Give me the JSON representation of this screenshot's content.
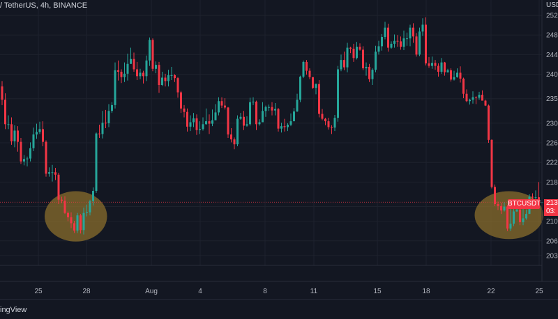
{
  "header": {
    "title": "/ TetherUS, 4h, BINANCE"
  },
  "brand": "ingView",
  "currency_label": "USD",
  "symbol_tag": "BTCUSDT",
  "last_price": {
    "price": "213",
    "countdown": "03:"
  },
  "colors": {
    "up": "#26a69a",
    "down": "#f23645",
    "grid": "#1e222d",
    "text": "#b2b5be",
    "highlight": "#8a6d2c",
    "bg": "#131722"
  },
  "chart_data": {
    "type": "candlestick",
    "title": "",
    "xlabel": "",
    "ylabel": "",
    "ylim": [
      201,
      254
    ],
    "grid": true,
    "y_ticks": [
      "252",
      "248",
      "244",
      "240",
      "235",
      "230",
      "226",
      "222",
      "218",
      "213",
      "210",
      "206",
      "203"
    ],
    "x_ticks": [
      "25",
      "28",
      "Aug",
      "4",
      "8",
      "11",
      "15",
      "18",
      "22",
      "25"
    ],
    "last_price": 213.9,
    "highlighted_zones": [
      {
        "from_candle": 18,
        "to_candle": 29,
        "low": 207.0,
        "high": 215.0
      },
      {
        "from_candle": 155,
        "to_candle": 168,
        "low": 207.5,
        "high": 215.0
      }
    ],
    "candles": [
      [
        237.5,
        234.8,
        238.6,
        233.7
      ],
      [
        234.8,
        229.8,
        236.1,
        228.8
      ],
      [
        229.8,
        229.8,
        231.6,
        228.8
      ],
      [
        229.8,
        226.3,
        231.2,
        225.6
      ],
      [
        226.3,
        228.5,
        229.6,
        225.1
      ],
      [
        228.5,
        226.2,
        229.4,
        224.2
      ],
      [
        226.2,
        222.2,
        227.0,
        221.7
      ],
      [
        222.2,
        222.7,
        223.5,
        221.4
      ],
      [
        222.7,
        222.8,
        223.2,
        221.2
      ],
      [
        222.8,
        224.9,
        226.1,
        222.2
      ],
      [
        224.9,
        227.7,
        229.1,
        224.3
      ],
      [
        227.7,
        228.2,
        229.9,
        226.8
      ],
      [
        228.2,
        228.8,
        230.3,
        227.8
      ],
      [
        228.8,
        226.2,
        230.4,
        225.3
      ],
      [
        226.2,
        219.7,
        226.5,
        219.1
      ],
      [
        219.7,
        220.0,
        221.0,
        219.1
      ],
      [
        220.0,
        220.0,
        221.5,
        218.1
      ],
      [
        220.0,
        219.5,
        220.9,
        218.4
      ],
      [
        219.5,
        214.4,
        219.9,
        213.5
      ],
      [
        214.4,
        214.2,
        215.0,
        213.7
      ],
      [
        214.2,
        211.7,
        215.1,
        211.5
      ],
      [
        211.7,
        210.8,
        212.0,
        210.0
      ],
      [
        210.8,
        209.6,
        211.8,
        208.6
      ],
      [
        209.6,
        208.1,
        210.1,
        207.6
      ],
      [
        208.1,
        211.2,
        211.7,
        207.6
      ],
      [
        211.2,
        208.2,
        211.5,
        207.5
      ],
      [
        208.2,
        211.7,
        212.8,
        207.3
      ],
      [
        211.7,
        211.8,
        213.4,
        211.0
      ],
      [
        211.8,
        214.1,
        214.4,
        211.2
      ],
      [
        214.1,
        216.2,
        216.9,
        213.2
      ],
      [
        216.2,
        227.9,
        228.1,
        215.8
      ],
      [
        227.9,
        227.8,
        229.7,
        227.0
      ],
      [
        227.8,
        230.1,
        232.5,
        226.9
      ],
      [
        230.1,
        230.0,
        232.7,
        229.0
      ],
      [
        230.0,
        232.5,
        233.9,
        229.2
      ],
      [
        232.5,
        233.7,
        234.3,
        232.1
      ],
      [
        233.7,
        240.8,
        242.4,
        233.0
      ],
      [
        240.8,
        240.5,
        242.8,
        238.7
      ],
      [
        240.5,
        239.4,
        241.0,
        238.2
      ],
      [
        239.4,
        240.1,
        242.4,
        238.4
      ],
      [
        240.1,
        242.1,
        244.2,
        238.7
      ],
      [
        242.1,
        243.1,
        245.4,
        242.1
      ],
      [
        243.1,
        241.0,
        244.4,
        240.5
      ],
      [
        241.0,
        239.6,
        242.5,
        238.8
      ],
      [
        239.6,
        240.3,
        241.1,
        239.0
      ],
      [
        240.3,
        239.6,
        240.7,
        238.1
      ],
      [
        239.6,
        242.8,
        243.8,
        238.6
      ],
      [
        242.8,
        247.0,
        247.5,
        241.7
      ],
      [
        247.0,
        241.1,
        247.3,
        240.6
      ],
      [
        241.1,
        241.9,
        242.6,
        240.2
      ],
      [
        241.9,
        237.8,
        242.5,
        236.2
      ],
      [
        237.8,
        239.3,
        240.5,
        237.6
      ],
      [
        239.3,
        238.6,
        240.1,
        237.5
      ],
      [
        238.6,
        239.8,
        240.9,
        237.5
      ],
      [
        239.8,
        239.8,
        241.5,
        238.8
      ],
      [
        239.8,
        239.2,
        240.0,
        238.4
      ],
      [
        239.2,
        236.3,
        239.4,
        235.2
      ],
      [
        236.3,
        233.0,
        236.6,
        232.1
      ],
      [
        233.0,
        232.3,
        233.7,
        231.2
      ],
      [
        232.3,
        229.3,
        233.0,
        228.3
      ],
      [
        229.3,
        230.2,
        231.6,
        228.4
      ],
      [
        230.2,
        231.0,
        232.1,
        229.2
      ],
      [
        231.0,
        228.6,
        231.8,
        227.6
      ],
      [
        228.6,
        228.8,
        230.4,
        227.8
      ],
      [
        228.8,
        229.8,
        231.2,
        228.5
      ],
      [
        229.8,
        230.4,
        233.0,
        229.7
      ],
      [
        230.4,
        229.9,
        231.8,
        227.8
      ],
      [
        229.9,
        230.6,
        232.8,
        229.4
      ],
      [
        230.6,
        232.2,
        233.9,
        231.2
      ],
      [
        232.2,
        234.5,
        235.3,
        231.6
      ],
      [
        234.5,
        233.6,
        235.3,
        233.1
      ],
      [
        233.6,
        233.2,
        235.1,
        232.8
      ],
      [
        233.2,
        227.7,
        233.3,
        227.0
      ],
      [
        227.7,
        226.7,
        229.0,
        226.1
      ],
      [
        226.7,
        225.7,
        227.1,
        224.7
      ],
      [
        225.7,
        230.9,
        231.6,
        225.3
      ],
      [
        230.9,
        231.3,
        232.1,
        230.7
      ],
      [
        231.3,
        229.5,
        232.5,
        228.6
      ],
      [
        229.5,
        229.8,
        231.4,
        229.3
      ],
      [
        229.8,
        234.3,
        235.2,
        229.5
      ],
      [
        234.3,
        234.4,
        235.3,
        233.7
      ],
      [
        234.4,
        229.8,
        234.6,
        228.6
      ],
      [
        229.8,
        230.2,
        230.8,
        229.5
      ],
      [
        230.2,
        232.5,
        234.3,
        230.2
      ],
      [
        232.5,
        233.3,
        233.6,
        231.3
      ],
      [
        233.3,
        233.3,
        233.8,
        232.5
      ],
      [
        233.3,
        232.6,
        234.3,
        231.6
      ],
      [
        232.6,
        232.9,
        234.1,
        231.6
      ],
      [
        232.9,
        228.9,
        233.1,
        228.3
      ],
      [
        228.9,
        229.4,
        230.1,
        228.1
      ],
      [
        229.4,
        229.2,
        230.9,
        228.3
      ],
      [
        229.2,
        229.7,
        230.0,
        228.4
      ],
      [
        229.7,
        230.4,
        232.0,
        229.4
      ],
      [
        230.4,
        232.4,
        233.1,
        230.4
      ],
      [
        232.4,
        234.8,
        236.0,
        232.3
      ],
      [
        234.8,
        239.5,
        239.7,
        234.3
      ],
      [
        239.5,
        242.5,
        242.8,
        239.2
      ],
      [
        242.5,
        240.7,
        242.9,
        239.9
      ],
      [
        240.7,
        239.4,
        241.2,
        239.0
      ],
      [
        239.4,
        237.2,
        239.4,
        237.0
      ],
      [
        237.2,
        238.0,
        238.1,
        235.9
      ],
      [
        238.0,
        231.9,
        238.8,
        231.2
      ],
      [
        231.9,
        230.9,
        232.9,
        230.6
      ],
      [
        230.9,
        230.4,
        231.1,
        229.6
      ],
      [
        230.4,
        229.2,
        231.1,
        228.7
      ],
      [
        229.2,
        229.1,
        229.6,
        227.8
      ],
      [
        229.1,
        231.1,
        231.7,
        228.4
      ],
      [
        231.1,
        241.0,
        241.7,
        230.3
      ],
      [
        241.0,
        242.9,
        244.0,
        240.6
      ],
      [
        242.9,
        241.4,
        244.6,
        240.8
      ],
      [
        241.4,
        245.4,
        246.4,
        240.4
      ],
      [
        245.4,
        245.2,
        245.6,
        244.3
      ],
      [
        245.2,
        243.3,
        246.2,
        242.5
      ],
      [
        243.3,
        245.6,
        246.6,
        243.0
      ],
      [
        245.6,
        245.0,
        246.3,
        244.8
      ],
      [
        245.0,
        241.2,
        245.7,
        240.8
      ],
      [
        241.2,
        241.5,
        242.4,
        239.7
      ],
      [
        241.5,
        239.0,
        242.1,
        238.4
      ],
      [
        239.0,
        240.9,
        241.2,
        237.8
      ],
      [
        240.9,
        244.6,
        245.8,
        240.4
      ],
      [
        244.6,
        245.7,
        246.8,
        244.0
      ],
      [
        245.7,
        247.6,
        248.2,
        244.8
      ],
      [
        247.6,
        249.5,
        250.7,
        247.1
      ],
      [
        249.5,
        245.4,
        250.3,
        244.6
      ],
      [
        245.4,
        246.2,
        246.7,
        245.2
      ],
      [
        246.2,
        246.8,
        248.1,
        245.4
      ],
      [
        246.8,
        246.7,
        248.0,
        245.6
      ],
      [
        246.7,
        245.6,
        247.7,
        245.0
      ],
      [
        245.6,
        247.3,
        248.9,
        244.9
      ],
      [
        247.3,
        247.3,
        248.5,
        245.8
      ],
      [
        247.3,
        249.5,
        250.1,
        245.7
      ],
      [
        249.5,
        247.7,
        250.4,
        246.4
      ],
      [
        247.7,
        244.0,
        248.4,
        243.6
      ],
      [
        244.0,
        248.7,
        249.5,
        243.7
      ],
      [
        248.7,
        250.1,
        251.4,
        247.8
      ],
      [
        250.1,
        242.2,
        251.6,
        241.8
      ],
      [
        242.2,
        241.7,
        243.5,
        241.3
      ],
      [
        241.7,
        242.3,
        243.6,
        241.1
      ],
      [
        242.3,
        241.7,
        242.9,
        240.9
      ],
      [
        241.7,
        240.5,
        242.2,
        239.5
      ],
      [
        240.5,
        242.4,
        243.3,
        240.1
      ],
      [
        242.4,
        240.4,
        242.5,
        239.7
      ],
      [
        240.4,
        240.8,
        241.1,
        240.3
      ],
      [
        240.8,
        238.9,
        241.2,
        238.5
      ],
      [
        238.9,
        239.4,
        240.7,
        238.7
      ],
      [
        239.4,
        240.3,
        241.2,
        239.3
      ],
      [
        240.3,
        239.1,
        241.6,
        238.3
      ],
      [
        239.1,
        236.0,
        239.3,
        235.1
      ],
      [
        236.0,
        234.5,
        236.9,
        234.3
      ],
      [
        234.5,
        234.8,
        235.0,
        233.8
      ],
      [
        234.8,
        235.3,
        236.5,
        234.0
      ],
      [
        235.3,
        235.2,
        235.5,
        233.9
      ],
      [
        235.2,
        235.8,
        236.4,
        234.8
      ],
      [
        235.8,
        234.6,
        236.7,
        234.6
      ],
      [
        234.6,
        233.6,
        234.8,
        233.5
      ],
      [
        233.6,
        226.6,
        233.8,
        226.0
      ],
      [
        226.6,
        217.0,
        226.7,
        216.7
      ],
      [
        217.0,
        213.5,
        217.5,
        213.1
      ],
      [
        213.5,
        213.1,
        214.0,
        212.3
      ],
      [
        213.1,
        212.2,
        213.8,
        211.5
      ],
      [
        212.2,
        213.0,
        213.9,
        212.0
      ],
      [
        213.0,
        208.5,
        213.3,
        208.0
      ],
      [
        208.5,
        209.5,
        212.6,
        208.0
      ],
      [
        209.5,
        212.0,
        213.8,
        209.0
      ],
      [
        212.0,
        212.4,
        213.6,
        211.9
      ],
      [
        212.4,
        209.8,
        213.3,
        209.2
      ],
      [
        209.8,
        210.6,
        212.6,
        209.2
      ],
      [
        210.6,
        211.5,
        212.4,
        210.3
      ],
      [
        211.5,
        215.0,
        215.5,
        211.5
      ],
      [
        215.0,
        214.9,
        215.7,
        213.7
      ],
      [
        214.9,
        214.9,
        216.3,
        213.9
      ],
      [
        214.9,
        213.9,
        218.0,
        213.7
      ],
      [
        213.9,
        213.9,
        216.0,
        212.9
      ]
    ]
  }
}
